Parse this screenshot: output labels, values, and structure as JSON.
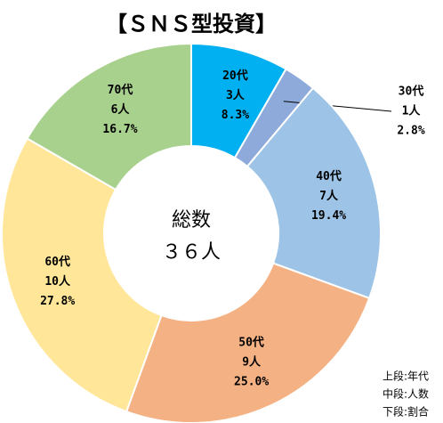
{
  "chart_data": {
    "type": "donut",
    "title": "【ＳＮＳ型投資】",
    "categories": [
      "20代",
      "30代",
      "40代",
      "50代",
      "60代",
      "70代"
    ],
    "values": [
      3,
      1,
      7,
      9,
      10,
      6
    ],
    "value_labels": [
      "3人",
      "1人",
      "7人",
      "9人",
      "10人",
      "6人"
    ],
    "percentages": [
      8.3,
      2.8,
      19.4,
      25.0,
      27.8,
      16.7
    ],
    "percentage_labels": [
      "8.3%",
      "2.8%",
      "19.4%",
      "25.0%",
      "27.8%",
      "16.7%"
    ],
    "colors": [
      "#00b0f0",
      "#8eaadb",
      "#9dc3e6",
      "#f4b183",
      "#ffe699",
      "#a9d18e"
    ],
    "center_label": "総数",
    "center_total": "３６人",
    "notes": [
      "上段:年代",
      "中段:人数",
      "下段:割合"
    ]
  }
}
